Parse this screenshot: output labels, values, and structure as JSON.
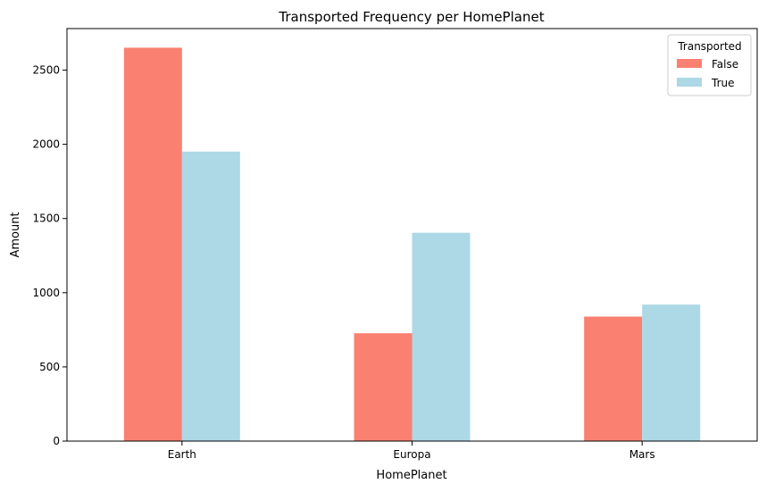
{
  "chart_data": {
    "type": "bar",
    "title": "Transported Frequency per HomePlanet",
    "xlabel": "HomePlanet",
    "ylabel": "Amount",
    "categories": [
      "Earth",
      "Europa",
      "Mars"
    ],
    "series": [
      {
        "name": "False",
        "values": [
          2651,
          727,
          839
        ],
        "color": "#fa8072"
      },
      {
        "name": "True",
        "values": [
          1951,
          1404,
          920
        ],
        "color": "#add8e6"
      }
    ],
    "ylim": [
      0,
      2780
    ],
    "yticks": [
      0,
      500,
      1000,
      1500,
      2000,
      2500
    ],
    "grid": false,
    "legend": {
      "title": "Transported",
      "placement": "top-right"
    }
  }
}
